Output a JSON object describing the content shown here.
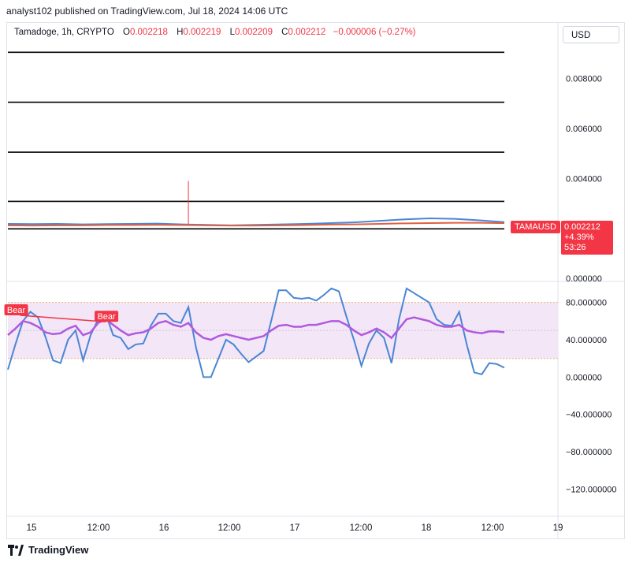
{
  "header": {
    "published": "analyst102 published on TradingView.com, Jul 18, 2024 14:06 UTC"
  },
  "legend": {
    "symbol": "Tamadoge, 1h, CRYPTO",
    "o_label": "O",
    "o": "0.002218",
    "h_label": "H",
    "h": "0.002219",
    "l_label": "L",
    "l": "0.002209",
    "c_label": "C",
    "c": "0.002212",
    "change": "−0.000006 (−0.27%)"
  },
  "currency": "USD",
  "price_tag": {
    "symbol": "TAMAUSD",
    "last": "0.002212",
    "change_pct": "+4.39%",
    "countdown": "53:26"
  },
  "footer": {
    "brand": "TradingView"
  },
  "colors": {
    "accent_red": "#f23645",
    "stoch_k": "#4a86d4",
    "stoch_d": "#b05adf",
    "band_fill": "#f3e6f7",
    "band_line": "#e8b07a"
  },
  "chart_data": [
    {
      "type": "line",
      "pane": "price",
      "y_ticks": [
        "0.008000",
        "0.006000",
        "0.004000",
        "0.000000"
      ],
      "y_tick_values": [
        0.008,
        0.006,
        0.004,
        0.0
      ],
      "ylim": [
        0.0,
        0.00925
      ],
      "x_ticks": [
        "15",
        "12:00",
        "16",
        "12:00",
        "17",
        "12:00",
        "18",
        "12:00",
        "19"
      ],
      "horizontal_levels": [
        0.00905,
        0.00705,
        0.00505,
        0.00308,
        0.00198
      ],
      "spike": {
        "x_index": 24,
        "high": 0.0039,
        "low": 0.00218
      },
      "ma_series": [
        {
          "values": [
            0.00218,
            0.00217,
            0.00218,
            0.00216,
            0.00217,
            0.00218,
            0.00219,
            0.00216,
            0.00214,
            0.00212,
            0.00214,
            0.00216,
            0.00218,
            0.00221,
            0.00224,
            0.0023,
            0.00236,
            0.0024,
            0.00238,
            0.00232,
            0.00225
          ]
        },
        {
          "values": [
            0.00212,
            0.00211,
            0.00212,
            0.00212,
            0.00213,
            0.00213,
            0.00214,
            0.00213,
            0.00212,
            0.00211,
            0.00211,
            0.00212,
            0.00213,
            0.00215,
            0.00216,
            0.00218,
            0.0022,
            0.00221,
            0.00222,
            0.00222,
            0.00221
          ]
        }
      ]
    },
    {
      "type": "line",
      "pane": "stochastic_rsi",
      "y_ticks": [
        "80.000000",
        "40.000000",
        "0.000000",
        "−40.000000",
        "−80.000000",
        "−120.000000"
      ],
      "y_tick_values": [
        80,
        40,
        0,
        -40,
        -80,
        -120
      ],
      "ylim": [
        -145,
        100
      ],
      "band": [
        20,
        80
      ],
      "annotations": [
        {
          "text": "Bear",
          "x_index": 1,
          "y": 73
        },
        {
          "text": "Bear",
          "x_index": 13,
          "y": 66
        }
      ],
      "series": [
        {
          "values": [
            8,
            35,
            60,
            70,
            64,
            43,
            18,
            15,
            40,
            50,
            18,
            45,
            62,
            68,
            45,
            42,
            30,
            35,
            36,
            55,
            68,
            68,
            60,
            58,
            75,
            32,
            0,
            0,
            20,
            40,
            35,
            25,
            16,
            22,
            28,
            60,
            93,
            93,
            85,
            84,
            85,
            82,
            88,
            95,
            92,
            65,
            40,
            12,
            36,
            50,
            42,
            15,
            62,
            95,
            90,
            85,
            80,
            62,
            56,
            55,
            70,
            35,
            5,
            3,
            15,
            14,
            10
          ]
        },
        {
          "values": [
            45,
            52,
            60,
            58,
            54,
            48,
            46,
            47,
            52,
            55,
            45,
            48,
            58,
            62,
            56,
            50,
            45,
            47,
            48,
            52,
            58,
            60,
            56,
            54,
            58,
            48,
            42,
            40,
            44,
            46,
            44,
            42,
            40,
            42,
            44,
            50,
            55,
            56,
            54,
            54,
            56,
            56,
            58,
            60,
            60,
            56,
            50,
            45,
            48,
            52,
            48,
            42,
            52,
            62,
            64,
            62,
            60,
            56,
            54,
            54,
            56,
            50,
            48,
            47,
            49,
            49,
            48
          ]
        }
      ]
    }
  ]
}
